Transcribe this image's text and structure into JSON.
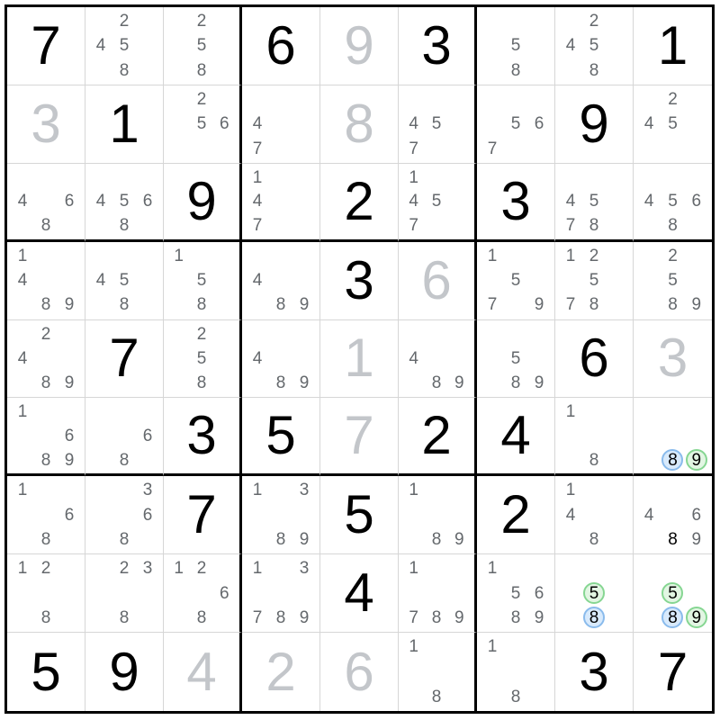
{
  "app": {
    "name": "sudoku-solver-grid"
  },
  "colors": {
    "background": "#ffffff",
    "box_border": "#000000",
    "cell_border": "#d6d6d6",
    "value_black": "#000000",
    "value_gray": "#c3c6ca",
    "candidate_gray": "#64686c",
    "circle_blue_fill": "#d8eafc",
    "circle_blue_border": "#8abbec",
    "circle_green_fill": "#e2f6e3",
    "circle_green_border": "#86d692",
    "eliminate_cross": "#f29fae"
  },
  "grid": {
    "rows": 9,
    "cols": 9,
    "cells": [
      {
        "r": 1,
        "c": 1,
        "value": "7",
        "color": "black"
      },
      {
        "r": 1,
        "c": 2,
        "candidates": [
          2,
          4,
          5,
          8
        ]
      },
      {
        "r": 1,
        "c": 3,
        "candidates": [
          2,
          5,
          8
        ]
      },
      {
        "r": 1,
        "c": 4,
        "value": "6",
        "color": "black"
      },
      {
        "r": 1,
        "c": 5,
        "value": "9",
        "color": "gray"
      },
      {
        "r": 1,
        "c": 6,
        "value": "3",
        "color": "black"
      },
      {
        "r": 1,
        "c": 7,
        "candidates": [
          5,
          8
        ]
      },
      {
        "r": 1,
        "c": 8,
        "candidates": [
          2,
          4,
          5,
          8
        ]
      },
      {
        "r": 1,
        "c": 9,
        "value": "1",
        "color": "black"
      },
      {
        "r": 2,
        "c": 1,
        "value": "3",
        "color": "gray"
      },
      {
        "r": 2,
        "c": 2,
        "value": "1",
        "color": "black"
      },
      {
        "r": 2,
        "c": 3,
        "candidates": [
          2,
          5,
          6
        ]
      },
      {
        "r": 2,
        "c": 4,
        "candidates": [
          4,
          7
        ]
      },
      {
        "r": 2,
        "c": 5,
        "value": "8",
        "color": "gray"
      },
      {
        "r": 2,
        "c": 6,
        "candidates": [
          4,
          5,
          7
        ]
      },
      {
        "r": 2,
        "c": 7,
        "candidates": [
          5,
          6,
          7
        ]
      },
      {
        "r": 2,
        "c": 8,
        "value": "9",
        "color": "black"
      },
      {
        "r": 2,
        "c": 9,
        "candidates": [
          2,
          4,
          5
        ]
      },
      {
        "r": 3,
        "c": 1,
        "candidates": [
          4,
          6,
          8
        ]
      },
      {
        "r": 3,
        "c": 2,
        "candidates": [
          4,
          5,
          6,
          8
        ]
      },
      {
        "r": 3,
        "c": 3,
        "value": "9",
        "color": "black"
      },
      {
        "r": 3,
        "c": 4,
        "candidates": [
          1,
          4,
          7
        ]
      },
      {
        "r": 3,
        "c": 5,
        "value": "2",
        "color": "black"
      },
      {
        "r": 3,
        "c": 6,
        "candidates": [
          1,
          4,
          5,
          7
        ]
      },
      {
        "r": 3,
        "c": 7,
        "value": "3",
        "color": "black"
      },
      {
        "r": 3,
        "c": 8,
        "candidates": [
          4,
          5,
          7,
          8
        ]
      },
      {
        "r": 3,
        "c": 9,
        "candidates": [
          4,
          5,
          6,
          8
        ]
      },
      {
        "r": 4,
        "c": 1,
        "candidates": [
          1,
          4,
          8,
          9
        ]
      },
      {
        "r": 4,
        "c": 2,
        "candidates": [
          4,
          5,
          8
        ]
      },
      {
        "r": 4,
        "c": 3,
        "candidates": [
          1,
          5,
          8
        ]
      },
      {
        "r": 4,
        "c": 4,
        "candidates": [
          4,
          8,
          9
        ]
      },
      {
        "r": 4,
        "c": 5,
        "value": "3",
        "color": "black"
      },
      {
        "r": 4,
        "c": 6,
        "value": "6",
        "color": "gray"
      },
      {
        "r": 4,
        "c": 7,
        "candidates": [
          1,
          5,
          7,
          9
        ]
      },
      {
        "r": 4,
        "c": 8,
        "candidates": [
          1,
          2,
          5,
          7,
          8
        ]
      },
      {
        "r": 4,
        "c": 9,
        "candidates": [
          2,
          5,
          8,
          9
        ]
      },
      {
        "r": 5,
        "c": 1,
        "candidates": [
          2,
          4,
          8,
          9
        ]
      },
      {
        "r": 5,
        "c": 2,
        "value": "7",
        "color": "black"
      },
      {
        "r": 5,
        "c": 3,
        "candidates": [
          2,
          5,
          8
        ]
      },
      {
        "r": 5,
        "c": 4,
        "candidates": [
          4,
          8,
          9
        ]
      },
      {
        "r": 5,
        "c": 5,
        "value": "1",
        "color": "gray"
      },
      {
        "r": 5,
        "c": 6,
        "candidates": [
          4,
          8,
          9
        ]
      },
      {
        "r": 5,
        "c": 7,
        "candidates": [
          5,
          8,
          9
        ]
      },
      {
        "r": 5,
        "c": 8,
        "value": "6",
        "color": "black"
      },
      {
        "r": 5,
        "c": 9,
        "value": "3",
        "color": "gray"
      },
      {
        "r": 6,
        "c": 1,
        "candidates": [
          1,
          6,
          8,
          9
        ]
      },
      {
        "r": 6,
        "c": 2,
        "candidates": [
          6,
          8
        ]
      },
      {
        "r": 6,
        "c": 3,
        "value": "3",
        "color": "black"
      },
      {
        "r": 6,
        "c": 4,
        "value": "5",
        "color": "black"
      },
      {
        "r": 6,
        "c": 5,
        "value": "7",
        "color": "gray"
      },
      {
        "r": 6,
        "c": 6,
        "value": "2",
        "color": "black"
      },
      {
        "r": 6,
        "c": 7,
        "value": "4",
        "color": "black"
      },
      {
        "r": 6,
        "c": 8,
        "candidates": [
          1,
          8
        ]
      },
      {
        "r": 6,
        "c": 9,
        "candidates": [
          8,
          9
        ],
        "marks": {
          "8": "circle-blue",
          "9": "circle-green"
        }
      },
      {
        "r": 7,
        "c": 1,
        "candidates": [
          1,
          6,
          8
        ]
      },
      {
        "r": 7,
        "c": 2,
        "candidates": [
          3,
          6,
          8
        ]
      },
      {
        "r": 7,
        "c": 3,
        "value": "7",
        "color": "black"
      },
      {
        "r": 7,
        "c": 4,
        "candidates": [
          1,
          3,
          8,
          9
        ]
      },
      {
        "r": 7,
        "c": 5,
        "value": "5",
        "color": "black"
      },
      {
        "r": 7,
        "c": 6,
        "candidates": [
          1,
          8,
          9
        ]
      },
      {
        "r": 7,
        "c": 7,
        "value": "2",
        "color": "black"
      },
      {
        "r": 7,
        "c": 8,
        "candidates": [
          1,
          4,
          8
        ]
      },
      {
        "r": 7,
        "c": 9,
        "candidates": [
          4,
          6,
          8,
          9
        ],
        "marks": {
          "8": "eliminated"
        }
      },
      {
        "r": 8,
        "c": 1,
        "candidates": [
          1,
          2,
          8
        ]
      },
      {
        "r": 8,
        "c": 2,
        "candidates": [
          2,
          3,
          8
        ]
      },
      {
        "r": 8,
        "c": 3,
        "candidates": [
          1,
          2,
          6,
          8
        ]
      },
      {
        "r": 8,
        "c": 4,
        "candidates": [
          1,
          3,
          7,
          8,
          9
        ]
      },
      {
        "r": 8,
        "c": 5,
        "value": "4",
        "color": "black"
      },
      {
        "r": 8,
        "c": 6,
        "candidates": [
          1,
          7,
          8,
          9
        ]
      },
      {
        "r": 8,
        "c": 7,
        "candidates": [
          1,
          5,
          6,
          8,
          9
        ]
      },
      {
        "r": 8,
        "c": 8,
        "candidates": [
          5,
          8
        ],
        "marks": {
          "5": "circle-green",
          "8": "circle-blue"
        }
      },
      {
        "r": 8,
        "c": 9,
        "candidates": [
          5,
          8,
          9
        ],
        "marks": {
          "5": "circle-green",
          "8": "circle-blue",
          "9": "circle-green"
        }
      },
      {
        "r": 9,
        "c": 1,
        "value": "5",
        "color": "black"
      },
      {
        "r": 9,
        "c": 2,
        "value": "9",
        "color": "black"
      },
      {
        "r": 9,
        "c": 3,
        "value": "4",
        "color": "gray"
      },
      {
        "r": 9,
        "c": 4,
        "value": "2",
        "color": "gray"
      },
      {
        "r": 9,
        "c": 5,
        "value": "6",
        "color": "gray"
      },
      {
        "r": 9,
        "c": 6,
        "candidates": [
          1,
          8
        ]
      },
      {
        "r": 9,
        "c": 7,
        "candidates": [
          1,
          8
        ]
      },
      {
        "r": 9,
        "c": 8,
        "value": "3",
        "color": "black"
      },
      {
        "r": 9,
        "c": 9,
        "value": "7",
        "color": "black"
      }
    ]
  }
}
